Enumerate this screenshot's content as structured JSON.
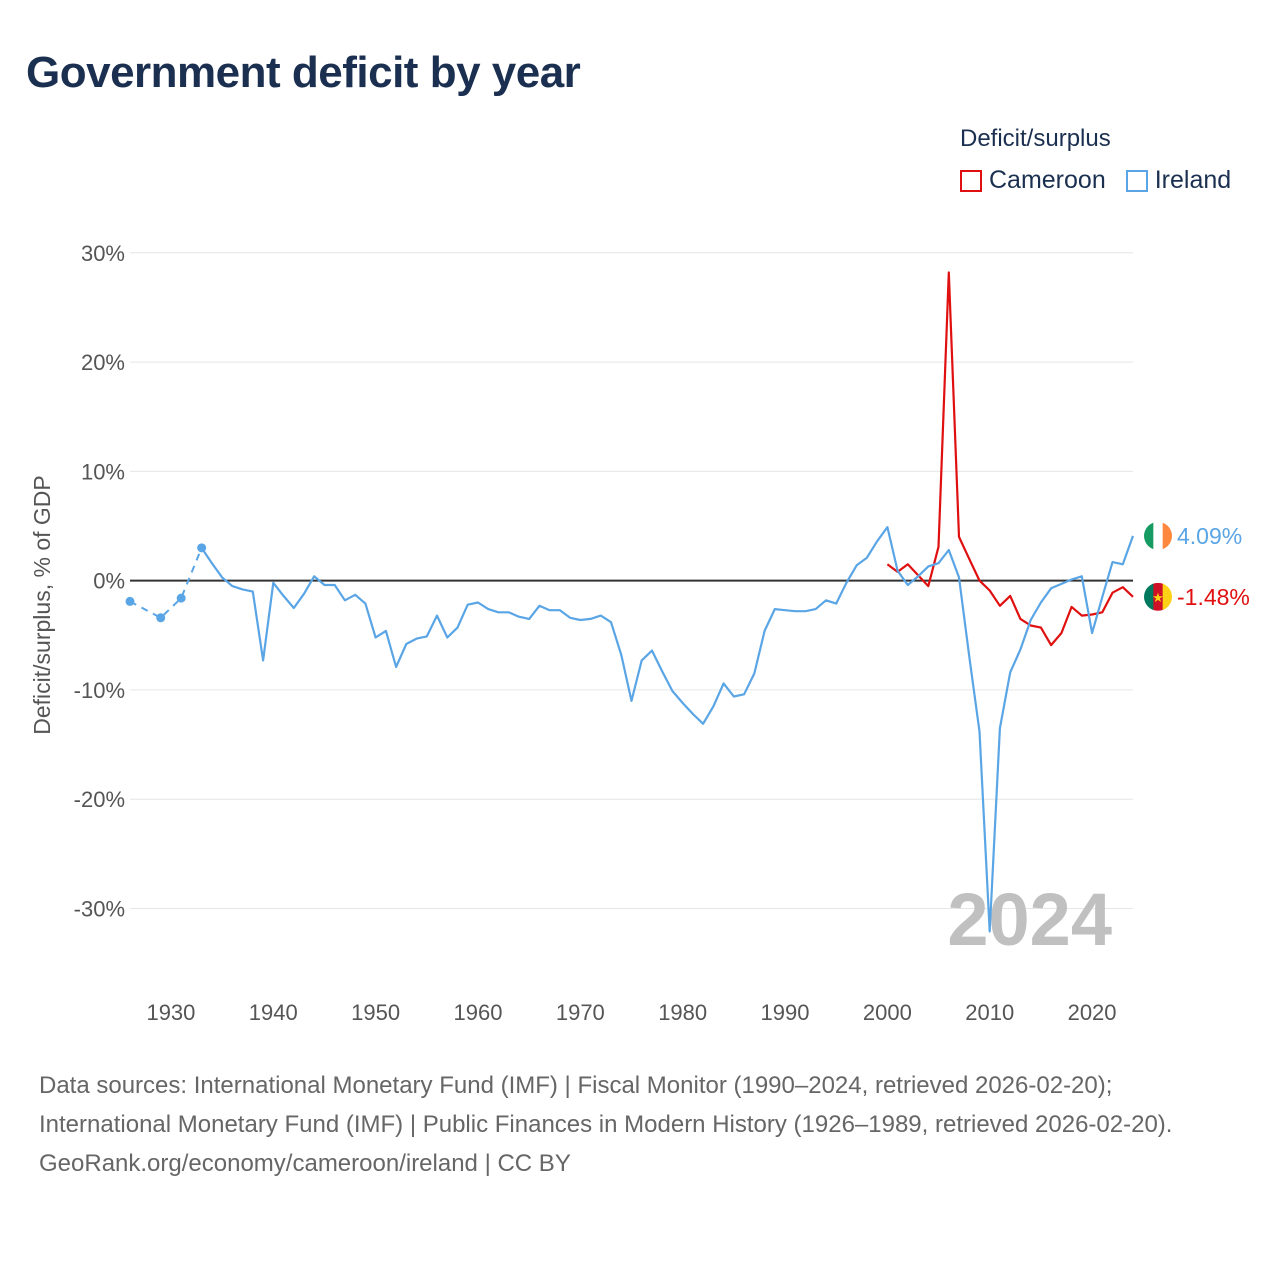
{
  "title": "Government deficit by year",
  "legend": {
    "title": "Deficit/surplus",
    "items": [
      {
        "name": "Cameroon",
        "color": "#e01010"
      },
      {
        "name": "Ireland",
        "color": "#5aa5e5"
      }
    ]
  },
  "watermark_year": "2024",
  "footer": {
    "sources": "Data sources: International Monetary Fund (IMF) | Fiscal Monitor (1990–2024, retrieved 2026-02-20); International Monetary Fund (IMF) | Public Finances in Modern History (1926–1989, retrieved 2026-02-20).",
    "credit": "GeoRank.org/economy/cameroon/ireland | CC BY"
  },
  "chart_data": {
    "type": "line",
    "title": "Government deficit by year",
    "xlabel": "",
    "ylabel": "Deficit/surplus, % of GDP",
    "xlim": [
      1926,
      2024
    ],
    "ylim": [
      -37,
      33
    ],
    "grid": true,
    "x_ticks": [
      1930,
      1940,
      1950,
      1960,
      1970,
      1980,
      1990,
      2000,
      2010,
      2020
    ],
    "y_ticks": [
      30,
      20,
      10,
      0,
      -10,
      -20,
      -30
    ],
    "y_tick_labels": [
      "30%",
      "20%",
      "10%",
      "0%",
      "-10%",
      "-20%",
      "-30%"
    ],
    "legend_position": "top-right",
    "series": [
      {
        "name": "Ireland",
        "color": "#5aa5e5",
        "end_label": "4.09%",
        "flag": "ireland-flag-icon",
        "sparse_points": [
          [
            1926,
            -1.9
          ],
          [
            1929,
            -3.4
          ],
          [
            1931,
            -1.6
          ],
          [
            1933,
            3.0
          ]
        ],
        "points": [
          [
            1933,
            3.0
          ],
          [
            1934,
            1.6
          ],
          [
            1935,
            0.3
          ],
          [
            1936,
            -0.5
          ],
          [
            1937,
            -0.8
          ],
          [
            1938,
            -1.0
          ],
          [
            1939,
            -7.3
          ],
          [
            1940,
            -0.2
          ],
          [
            1941,
            -1.4
          ],
          [
            1942,
            -2.5
          ],
          [
            1943,
            -1.2
          ],
          [
            1944,
            0.4
          ],
          [
            1945,
            -0.4
          ],
          [
            1946,
            -0.4
          ],
          [
            1947,
            -1.8
          ],
          [
            1948,
            -1.3
          ],
          [
            1949,
            -2.1
          ],
          [
            1950,
            -5.2
          ],
          [
            1951,
            -4.6
          ],
          [
            1952,
            -7.9
          ],
          [
            1953,
            -5.8
          ],
          [
            1954,
            -5.3
          ],
          [
            1955,
            -5.1
          ],
          [
            1956,
            -3.2
          ],
          [
            1957,
            -5.2
          ],
          [
            1958,
            -4.3
          ],
          [
            1959,
            -2.2
          ],
          [
            1960,
            -2.0
          ],
          [
            1961,
            -2.6
          ],
          [
            1962,
            -2.9
          ],
          [
            1963,
            -2.9
          ],
          [
            1964,
            -3.3
          ],
          [
            1965,
            -3.5
          ],
          [
            1966,
            -2.3
          ],
          [
            1967,
            -2.7
          ],
          [
            1968,
            -2.7
          ],
          [
            1969,
            -3.4
          ],
          [
            1970,
            -3.6
          ],
          [
            1971,
            -3.5
          ],
          [
            1972,
            -3.2
          ],
          [
            1973,
            -3.8
          ],
          [
            1974,
            -6.8
          ],
          [
            1975,
            -11.0
          ],
          [
            1976,
            -7.3
          ],
          [
            1977,
            -6.4
          ],
          [
            1978,
            -8.3
          ],
          [
            1979,
            -10.1
          ],
          [
            1980,
            -11.2
          ],
          [
            1981,
            -12.2
          ],
          [
            1982,
            -13.1
          ],
          [
            1983,
            -11.5
          ],
          [
            1984,
            -9.4
          ],
          [
            1985,
            -10.6
          ],
          [
            1986,
            -10.4
          ],
          [
            1987,
            -8.5
          ],
          [
            1988,
            -4.6
          ],
          [
            1989,
            -2.6
          ],
          [
            1990,
            -2.7
          ],
          [
            1991,
            -2.8
          ],
          [
            1992,
            -2.8
          ],
          [
            1993,
            -2.6
          ],
          [
            1994,
            -1.8
          ],
          [
            1995,
            -2.1
          ],
          [
            1996,
            -0.2
          ],
          [
            1997,
            1.4
          ],
          [
            1998,
            2.1
          ],
          [
            1999,
            3.6
          ],
          [
            2000,
            4.9
          ],
          [
            2001,
            0.9
          ],
          [
            2002,
            -0.4
          ],
          [
            2003,
            0.4
          ],
          [
            2004,
            1.3
          ],
          [
            2005,
            1.6
          ],
          [
            2006,
            2.8
          ],
          [
            2007,
            0.3
          ],
          [
            2008,
            -6.9
          ],
          [
            2009,
            -13.8
          ],
          [
            2010,
            -32.1
          ],
          [
            2011,
            -13.5
          ],
          [
            2012,
            -8.4
          ],
          [
            2013,
            -6.3
          ],
          [
            2014,
            -3.6
          ],
          [
            2015,
            -2.0
          ],
          [
            2016,
            -0.7
          ],
          [
            2017,
            -0.3
          ],
          [
            2018,
            0.1
          ],
          [
            2019,
            0.4
          ],
          [
            2020,
            -4.8
          ],
          [
            2021,
            -1.5
          ],
          [
            2022,
            1.7
          ],
          [
            2023,
            1.5
          ],
          [
            2024,
            4.09
          ]
        ]
      },
      {
        "name": "Cameroon",
        "color": "#e01010",
        "end_label": "-1.48%",
        "flag": "cameroon-flag-icon",
        "points": [
          [
            2000,
            1.5
          ],
          [
            2001,
            0.8
          ],
          [
            2002,
            1.5
          ],
          [
            2003,
            0.5
          ],
          [
            2004,
            -0.5
          ],
          [
            2005,
            3.1
          ],
          [
            2006,
            28.2
          ],
          [
            2007,
            4.0
          ],
          [
            2008,
            2.0
          ],
          [
            2009,
            0.0
          ],
          [
            2010,
            -0.9
          ],
          [
            2011,
            -2.3
          ],
          [
            2012,
            -1.4
          ],
          [
            2013,
            -3.5
          ],
          [
            2014,
            -4.1
          ],
          [
            2015,
            -4.3
          ],
          [
            2016,
            -5.9
          ],
          [
            2017,
            -4.8
          ],
          [
            2018,
            -2.4
          ],
          [
            2019,
            -3.2
          ],
          [
            2020,
            -3.1
          ],
          [
            2021,
            -2.9
          ],
          [
            2022,
            -1.1
          ],
          [
            2023,
            -0.6
          ],
          [
            2024,
            -1.48
          ]
        ]
      }
    ]
  }
}
